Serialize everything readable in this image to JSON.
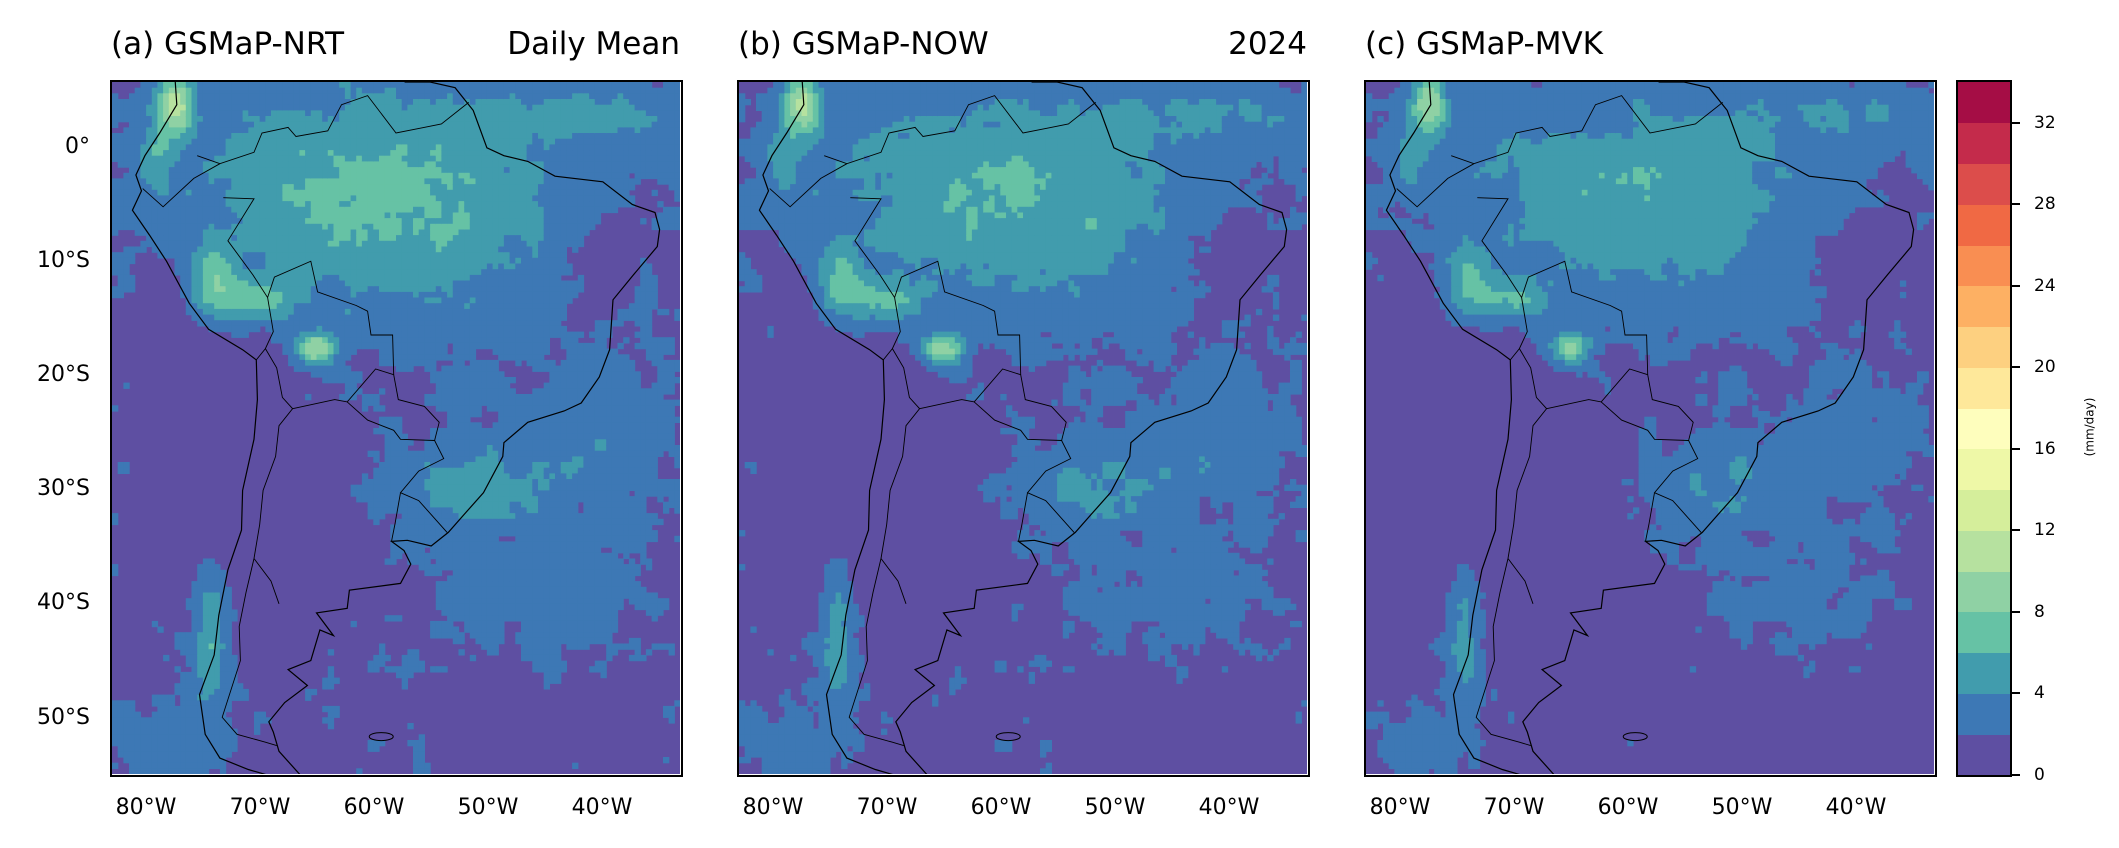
{
  "panels": [
    {
      "title_left": "(a) GSMaP-NRT",
      "title_right": "Daily Mean",
      "variant": "nrt"
    },
    {
      "title_left": "(b) GSMaP-NOW",
      "title_right": "2024",
      "variant": "now"
    },
    {
      "title_left": "(c) GSMaP-MVK",
      "title_right": "",
      "variant": "mvk"
    }
  ],
  "lat_labels": [
    "0°",
    "10°S",
    "20°S",
    "30°S",
    "40°S",
    "50°S"
  ],
  "lat_values": [
    0,
    -10,
    -20,
    -30,
    -40,
    -50
  ],
  "lon_labels": [
    "80°W",
    "70°W",
    "60°W",
    "50°W",
    "40°W"
  ],
  "lon_values": [
    -80,
    -70,
    -60,
    -50,
    -40
  ],
  "extent": {
    "lon_min": -83,
    "lon_max": -33,
    "lat_min": -55,
    "lat_max": 6
  },
  "colorbar": {
    "unit": "(mm/day)",
    "tick_labels": [
      "0",
      "4",
      "8",
      "12",
      "16",
      "20",
      "24",
      "28",
      "32"
    ],
    "tick_values": [
      0,
      4,
      8,
      12,
      16,
      20,
      24,
      28,
      32
    ],
    "max": 34,
    "levels": [
      0,
      2,
      4,
      6,
      8,
      10,
      12,
      14,
      16,
      18,
      20,
      22,
      24,
      26,
      28,
      30,
      32,
      34
    ],
    "colors": [
      "#5e4fa2",
      "#3d78b5",
      "#419cad",
      "#66c2a5",
      "#8fd1a4",
      "#b6e19f",
      "#d5ee9b",
      "#eef8a7",
      "#fefebd",
      "#fee89a",
      "#fdd080",
      "#fdb063",
      "#f98e52",
      "#f06944",
      "#dc4d4b",
      "#c42b4b",
      "#a50d45"
    ]
  }
}
